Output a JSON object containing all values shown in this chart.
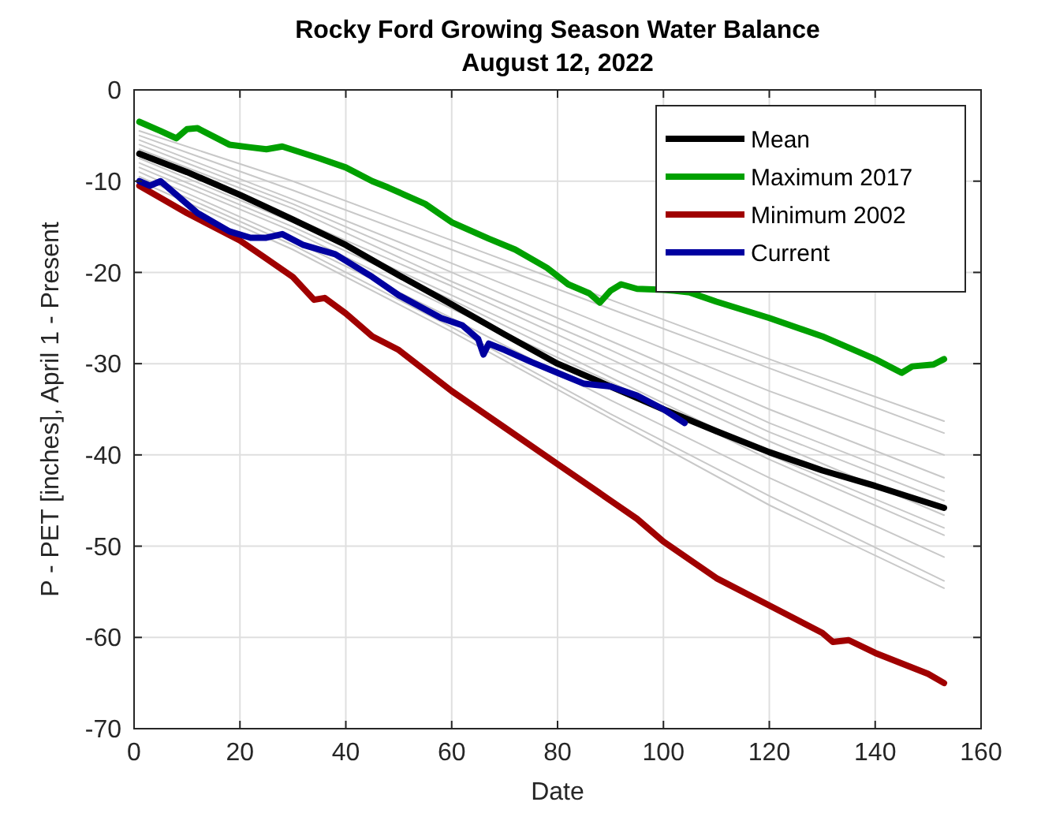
{
  "chart_data": {
    "type": "line",
    "title": "Rocky Ford Growing Season Water Balance",
    "subtitle": "August 12, 2022",
    "xlabel": "Date",
    "ylabel": "P - PET [inches], April 1 - Present",
    "xlim": [
      0,
      160
    ],
    "xticks": [
      0,
      20,
      40,
      60,
      80,
      100,
      120,
      140,
      160
    ],
    "ylim": [
      -70,
      0
    ],
    "yticks": [
      -70,
      -60,
      -50,
      -40,
      -30,
      -20,
      -10,
      0
    ],
    "grid": true,
    "legend": "top right",
    "line_style": "solid",
    "marker": "none",
    "series": [
      {
        "color": "#c8c8c8",
        "x": [
          1,
          30,
          60,
          90,
          120,
          153
        ],
        "values": [
          -4.5,
          -10,
          -16.5,
          -23,
          -29.5,
          -36.3
        ]
      },
      {
        "color": "#c8c8c8",
        "x": [
          1,
          30,
          60,
          90,
          120,
          153
        ],
        "values": [
          -5,
          -11,
          -17.5,
          -24,
          -30.5,
          -37.6
        ]
      },
      {
        "color": "#c8c8c8",
        "x": [
          1,
          30,
          60,
          90,
          120,
          153
        ],
        "values": [
          -5.5,
          -12,
          -19,
          -26,
          -33,
          -40
        ]
      },
      {
        "color": "#c8c8c8",
        "x": [
          1,
          30,
          60,
          90,
          120,
          153
        ],
        "values": [
          -6,
          -12.5,
          -20,
          -27.5,
          -35,
          -42.5
        ]
      },
      {
        "color": "#c8c8c8",
        "x": [
          1,
          30,
          60,
          90,
          120,
          153
        ],
        "values": [
          -6.5,
          -13,
          -21,
          -28.5,
          -36.5,
          -44
        ]
      },
      {
        "color": "#c8c8c8",
        "x": [
          1,
          30,
          60,
          90,
          120,
          153
        ],
        "values": [
          -7,
          -14,
          -21.5,
          -29.5,
          -37.5,
          -45
        ]
      },
      {
        "color": "#c8c8c8",
        "x": [
          1,
          30,
          60,
          90,
          120,
          153
        ],
        "values": [
          -7.5,
          -14.5,
          -22.5,
          -30.5,
          -38.5,
          -46.6
        ]
      },
      {
        "color": "#c8c8c8",
        "x": [
          1,
          30,
          60,
          90,
          120,
          153
        ],
        "values": [
          -8,
          -15,
          -23,
          -31.5,
          -40,
          -48
        ]
      },
      {
        "color": "#c8c8c8",
        "x": [
          1,
          30,
          60,
          90,
          120,
          153
        ],
        "values": [
          -8.5,
          -15.5,
          -24,
          -32,
          -40.5,
          -48.8
        ]
      },
      {
        "color": "#c8c8c8",
        "x": [
          1,
          30,
          60,
          90,
          120,
          153
        ],
        "values": [
          -9,
          -16.5,
          -25,
          -34,
          -42.5,
          -51.2
        ]
      },
      {
        "color": "#c8c8c8",
        "x": [
          1,
          30,
          60,
          90,
          120,
          153
        ],
        "values": [
          -9.5,
          -17,
          -26,
          -35.5,
          -44.5,
          -53.8
        ]
      },
      {
        "color": "#c8c8c8",
        "x": [
          1,
          30,
          60,
          90,
          120,
          153
        ],
        "values": [
          -10,
          -17.5,
          -26.5,
          -36,
          -45.5,
          -54.6
        ]
      },
      {
        "name": "Mean",
        "color": "#000000",
        "x": [
          1,
          10,
          20,
          30,
          40,
          50,
          60,
          70,
          80,
          90,
          100,
          110,
          120,
          130,
          140,
          153
        ],
        "values": [
          -7,
          -9,
          -11.5,
          -14.2,
          -17,
          -20.3,
          -23.5,
          -26.8,
          -30,
          -32.5,
          -35,
          -37.4,
          -39.7,
          -41.7,
          -43.4,
          -45.8
        ]
      },
      {
        "name": "Maximum 2017",
        "color": "#00a000",
        "x": [
          1,
          5,
          8,
          10,
          12,
          18,
          22,
          25,
          28,
          35,
          40,
          45,
          48,
          55,
          60,
          67,
          72,
          78,
          82,
          86,
          88,
          90,
          92,
          95,
          100,
          102,
          105,
          110,
          120,
          130,
          140,
          145,
          147,
          151,
          153
        ],
        "values": [
          -3.5,
          -4.5,
          -5.3,
          -4.3,
          -4.2,
          -6,
          -6.3,
          -6.5,
          -6.2,
          -7.5,
          -8.5,
          -10,
          -10.7,
          -12.5,
          -14.5,
          -16.3,
          -17.5,
          -19.5,
          -21.3,
          -22.3,
          -23.3,
          -22,
          -21.3,
          -21.8,
          -21.9,
          -22,
          -22.2,
          -23.2,
          -25,
          -27,
          -29.5,
          -31,
          -30.3,
          -30.1,
          -29.5
        ]
      },
      {
        "name": "Minimum 2002",
        "color": "#a00000",
        "x": [
          1,
          10,
          20,
          25,
          30,
          34,
          36,
          40,
          45,
          50,
          60,
          70,
          80,
          90,
          95,
          100,
          110,
          120,
          130,
          132,
          135,
          140,
          150,
          153
        ],
        "values": [
          -10.5,
          -13.5,
          -16.5,
          -18.5,
          -20.5,
          -23,
          -22.8,
          -24.5,
          -27,
          -28.5,
          -33,
          -37,
          -41,
          -45,
          -47,
          -49.5,
          -53.5,
          -56.5,
          -59.5,
          -60.5,
          -60.3,
          -61.7,
          -64,
          -65
        ]
      },
      {
        "name": "Current",
        "color": "#0000a0",
        "x": [
          1,
          3,
          5,
          8,
          12,
          18,
          22,
          25,
          28,
          32,
          38,
          45,
          50,
          58,
          62,
          65,
          66,
          67,
          70,
          75,
          80,
          85,
          90,
          95,
          100,
          104
        ],
        "values": [
          -10,
          -10.5,
          -10,
          -11.5,
          -13.5,
          -15.5,
          -16.2,
          -16.2,
          -15.8,
          -17,
          -18,
          -20.5,
          -22.5,
          -25,
          -25.8,
          -27.3,
          -29,
          -27.8,
          -28.5,
          -29.8,
          -31,
          -32.2,
          -32.5,
          -33.5,
          -35,
          -36.5
        ]
      }
    ]
  }
}
